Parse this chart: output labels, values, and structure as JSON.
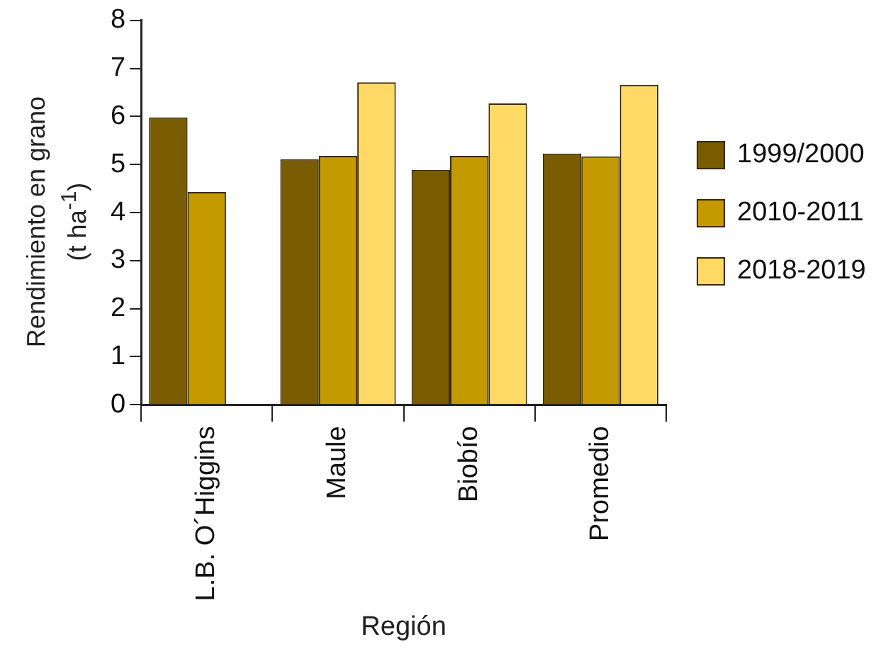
{
  "chart_data": {
    "type": "bar",
    "xlabel": "Región",
    "ylabel": "Rendimiento en grano (t ha$^{-1}$)",
    "categories": [
      "L.B. O´Higgins",
      "Maule",
      "Biobío",
      "Promedio"
    ],
    "series": [
      {
        "name": "1999/2000",
        "color": "#7a5c00",
        "values": [
          5.98,
          5.11,
          4.89,
          5.23
        ]
      },
      {
        "name": "2010-2011",
        "color": "#c49a00",
        "values": [
          4.43,
          5.18,
          5.18,
          5.17
        ]
      },
      {
        "name": "2018-2019",
        "color": "#ffd966",
        "values": [
          null,
          6.71,
          6.27,
          6.66
        ]
      }
    ],
    "ylim": [
      0,
      8
    ],
    "yticks": [
      0,
      1,
      2,
      3,
      4,
      5,
      6,
      7,
      8
    ],
    "grid": false,
    "legend": "right"
  }
}
